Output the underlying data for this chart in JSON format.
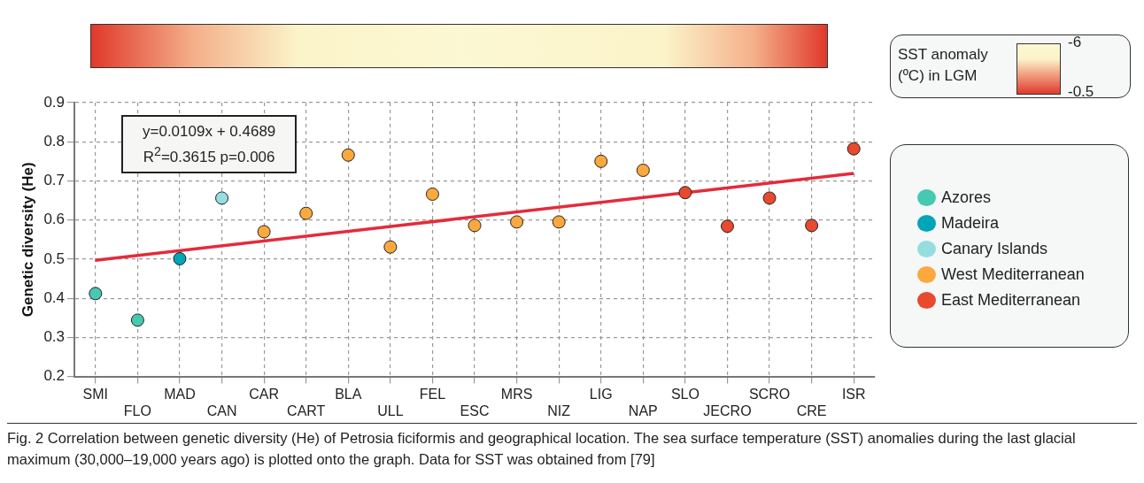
{
  "chart_data": {
    "type": "scatter",
    "ylabel": "Genetic diversity (He)",
    "categories": [
      "SMI",
      "FLO",
      "MAD",
      "CAN",
      "CAR",
      "CART",
      "BLA",
      "ULL",
      "FEL",
      "ESC",
      "MRS",
      "NIZ",
      "LIG",
      "NAP",
      "SLO",
      "JECRO",
      "SCRO",
      "CRE",
      "ISR"
    ],
    "series": [
      {
        "name": "Azores",
        "color": "#45c9b0",
        "values": [
          0.412,
          0.344,
          null,
          null,
          null,
          null,
          null,
          null,
          null,
          null,
          null,
          null,
          null,
          null,
          null,
          null,
          null,
          null,
          null
        ]
      },
      {
        "name": "Madeira",
        "color": "#00a5b8",
        "values": [
          null,
          null,
          0.501,
          null,
          null,
          null,
          null,
          null,
          null,
          null,
          null,
          null,
          null,
          null,
          null,
          null,
          null,
          null,
          null
        ]
      },
      {
        "name": "Canary Islands",
        "color": "#96dde0",
        "values": [
          null,
          null,
          null,
          0.656,
          null,
          null,
          null,
          null,
          null,
          null,
          null,
          null,
          null,
          null,
          null,
          null,
          null,
          null,
          null
        ]
      },
      {
        "name": "West Mediterranean",
        "color": "#fba93e",
        "values": [
          null,
          null,
          null,
          null,
          0.57,
          0.617,
          0.766,
          0.531,
          0.666,
          0.586,
          0.595,
          0.595,
          0.75,
          0.727,
          null,
          null,
          null,
          null,
          null
        ]
      },
      {
        "name": "East Mediterranean",
        "color": "#e8492f",
        "values": [
          null,
          null,
          null,
          null,
          null,
          null,
          null,
          null,
          null,
          null,
          null,
          null,
          null,
          null,
          0.67,
          0.584,
          0.656,
          0.586,
          0.782
        ]
      },
      {
        "type": "line",
        "marker": "none",
        "color": "#e42b3b",
        "x": [
          "SMI",
          "ISR"
        ],
        "values": [
          0.497,
          0.719
        ]
      }
    ],
    "ylim": [
      0.2,
      0.9
    ],
    "yticks": [
      0.2,
      0.3,
      0.4,
      0.5,
      0.6,
      0.7,
      0.8,
      0.9
    ],
    "grid": true,
    "legend": "right",
    "marker": "circle",
    "clabel": "SST anomaly (ºC) in LGM",
    "clim": [
      -6,
      -0.5
    ],
    "cticks": [
      -6,
      -0.5
    ],
    "annotations": [
      "y=0.0109x + 0.4689",
      "R$^{2}$=0.3615 p=0.006",
      "Fig. 2 Correlation between genetic diversity (He) of Petrosia ficiformis and geographical location. The sea surface temperature (SST) anomalies during the last glacial maximum (30,000–19,000 years ago) is plotted onto the graph. Data for SST was obtained from [79]"
    ]
  }
}
